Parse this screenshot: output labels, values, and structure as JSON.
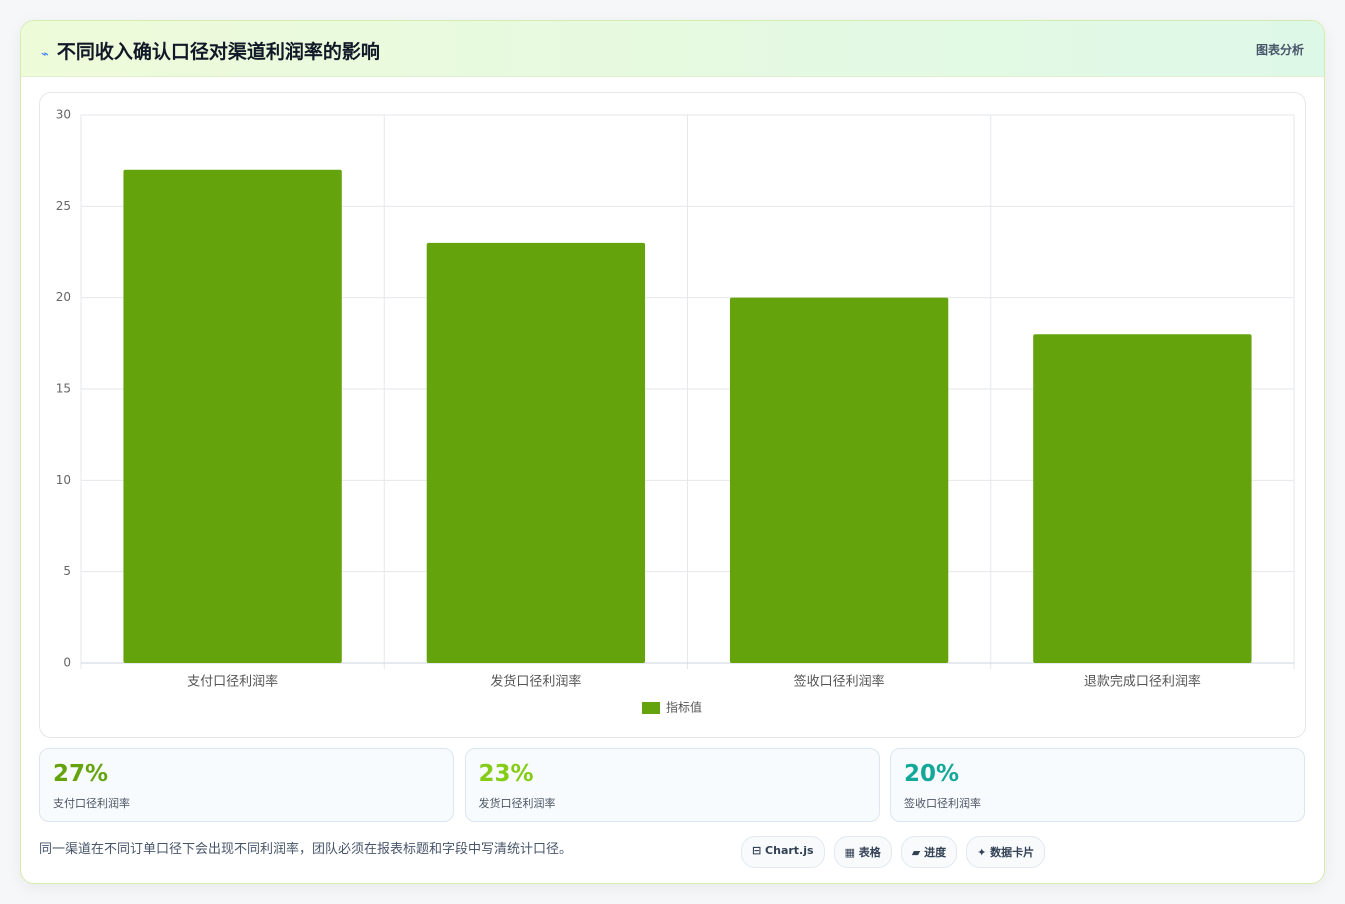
{
  "header_tag": "图表分析",
  "chart_data": {
    "type": "bar",
    "title": "不同收入确认口径对渠道利润率的影响",
    "categories": [
      "支付口径利润率",
      "发货口径利润率",
      "签收口径利润率",
      "退款完成口径利润率"
    ],
    "series": [
      {
        "name": "指标值",
        "color": "#65a30d",
        "values": [
          27,
          23,
          20,
          18
        ]
      }
    ],
    "ylim": [
      0,
      30
    ],
    "yticks": [
      0,
      5,
      10,
      15,
      20,
      25,
      30
    ],
    "grid": true
  },
  "stats": [
    {
      "value": "27%",
      "label": "支付口径利润率",
      "color": "#65a30d"
    },
    {
      "value": "23%",
      "label": "发货口径利润率",
      "color": "#84cc16"
    },
    {
      "value": "20%",
      "label": "签收口径利润率",
      "color": "#14a899"
    }
  ],
  "note": "同一渠道在不同订单口径下会出现不同利润率，团队必须在报表标题和字段中写清统计口径。",
  "tags": [
    "Chart.js",
    "表格",
    "进度",
    "数据卡片"
  ]
}
